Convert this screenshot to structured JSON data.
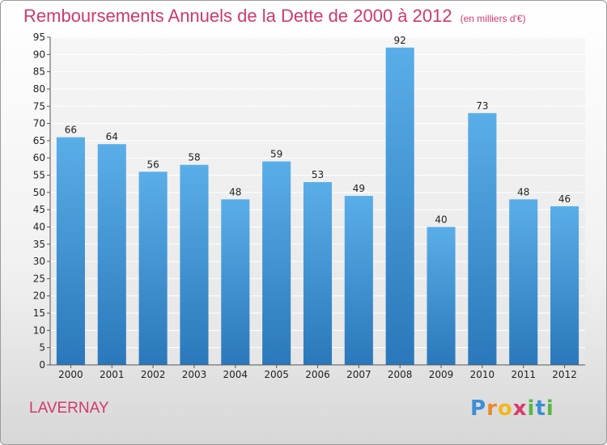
{
  "chart_data": {
    "type": "bar",
    "title": "Remboursements Annuels de la Dette de 2000 à 2012",
    "unit": "(en milliers d'€)",
    "categories": [
      "2000",
      "2001",
      "2002",
      "2003",
      "2004",
      "2005",
      "2006",
      "2007",
      "2008",
      "2009",
      "2010",
      "2011",
      "2012"
    ],
    "values": [
      66,
      64,
      56,
      58,
      48,
      59,
      53,
      49,
      92,
      40,
      73,
      48,
      46
    ],
    "ylim": [
      0,
      95
    ],
    "ytick_step": 5,
    "grid": true,
    "bar_color_top": "#5aaee8",
    "bar_color_bottom": "#2a78bb"
  },
  "footer": {
    "place": "LAVERNAY",
    "logo": {
      "p": "P",
      "r": "r",
      "o": "o",
      "x": "x",
      "i": "i",
      "t": "t",
      "i2": "i"
    }
  }
}
